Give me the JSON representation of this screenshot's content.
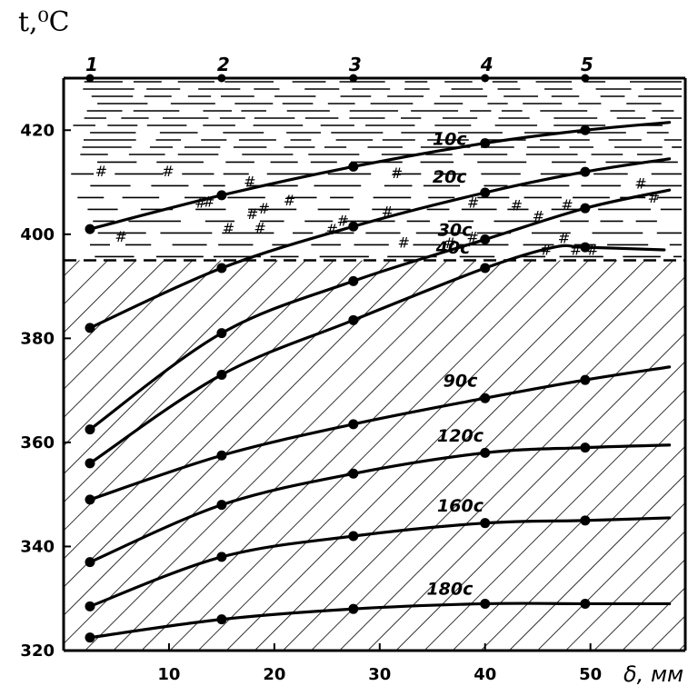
{
  "chart_data": {
    "type": "line",
    "title": "",
    "ylabel": "t,⁰C",
    "xlabel": "δ, мм",
    "xlim": [
      0,
      59
    ],
    "ylim": [
      320,
      430
    ],
    "x_ticks": [
      10,
      20,
      30,
      40,
      50
    ],
    "y_ticks": [
      320,
      340,
      360,
      380,
      400,
      420
    ],
    "grid": false,
    "zones": [
      {
        "name": "liquid",
        "from": 415,
        "to": 430,
        "pattern": "dashes"
      },
      {
        "name": "two-phase",
        "from": 395,
        "to": 415,
        "pattern": "dashes-and-hashes"
      },
      {
        "name": "solid",
        "from": 320,
        "to": 395,
        "pattern": "diagonal-hatch"
      }
    ],
    "stations": [
      {
        "label": "1",
        "x": 2.5
      },
      {
        "label": "2",
        "x": 15
      },
      {
        "label": "3",
        "x": 27.5
      },
      {
        "label": "4",
        "x": 40
      },
      {
        "label": "5",
        "x": 49.5
      }
    ],
    "series": [
      {
        "name": "10с",
        "x": [
          2.5,
          15,
          27.5,
          40,
          49.5,
          57.5
        ],
        "y": [
          401,
          407.5,
          413,
          417.5,
          420,
          421.5
        ]
      },
      {
        "name": "20с",
        "x": [
          2.5,
          15,
          27.5,
          40,
          49.5,
          57.5
        ],
        "y": [
          382,
          393.5,
          401.5,
          408,
          412,
          414.5
        ]
      },
      {
        "name": "30с",
        "x": [
          2.5,
          15,
          27.5,
          40,
          49.5,
          57.5
        ],
        "y": [
          362.5,
          381,
          391,
          399,
          405,
          408.5
        ]
      },
      {
        "name": "40с",
        "x": [
          2.5,
          15,
          27.5,
          40,
          46.5,
          49.5,
          57
        ],
        "y": [
          356,
          373,
          383.5,
          393.5,
          397.5,
          397.5,
          397
        ]
      },
      {
        "name": "90с",
        "x": [
          2.5,
          15,
          27.5,
          40,
          49.5,
          57.5
        ],
        "y": [
          349,
          357.5,
          363.5,
          368.5,
          372,
          374.5
        ]
      },
      {
        "name": "120с",
        "x": [
          2.5,
          15,
          27.5,
          40,
          49.5,
          57.5
        ],
        "y": [
          337,
          348,
          354,
          358,
          359,
          359.5
        ]
      },
      {
        "name": "160с",
        "x": [
          2.5,
          15,
          27.5,
          40,
          49.5,
          57.5
        ],
        "y": [
          328.5,
          338,
          342,
          344.5,
          345,
          345.5
        ]
      },
      {
        "name": "180с",
        "x": [
          2.5,
          15,
          27.5,
          40,
          49.5,
          57.5
        ],
        "y": [
          322.5,
          326,
          328,
          329,
          329,
          329
        ]
      }
    ]
  }
}
